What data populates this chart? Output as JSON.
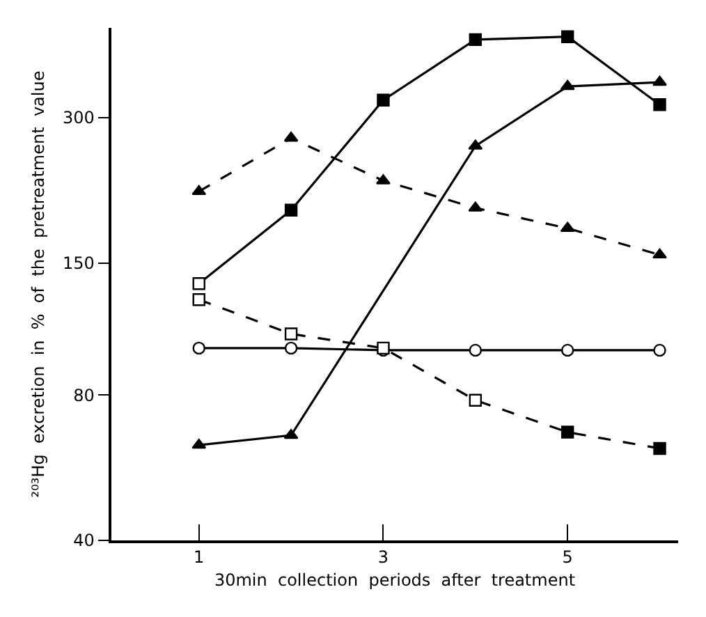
{
  "chart_data": {
    "type": "line",
    "xlabel": "30min  collection  periods  after  treatment",
    "ylabel": "²⁰³Hg  excretion  in  %  of  the  pretreatment  value",
    "x": [
      1,
      2,
      3,
      4,
      5,
      6
    ],
    "xlim": [
      0.05,
      6.2
    ],
    "xticks": [
      1,
      3,
      5
    ],
    "ylim": [
      40,
      460
    ],
    "yticks": [
      40,
      80,
      150,
      300
    ],
    "log": true,
    "grid": false,
    "series": [
      {
        "color": "#000000",
        "marker": "square",
        "line_style": "solid",
        "colors": [
          "#ffffff",
          "#000000",
          "#000000",
          "#000000",
          "#000000",
          "#000000"
        ],
        "values": [
          136,
          193,
          326,
          435,
          441,
          319
        ]
      },
      {
        "color": "#000000",
        "marker": "triangle",
        "line_style": "solid",
        "x": [
          1,
          2,
          4,
          5,
          6
        ],
        "values": [
          63,
          66,
          262,
          348,
          355
        ]
      },
      {
        "color": "#000000",
        "marker": "triangle",
        "line_style": "dashed",
        "values": [
          211,
          272,
          222,
          195,
          177,
          156
        ]
      },
      {
        "color": "#000000",
        "marker": "square",
        "line_style": "dashed",
        "colors": [
          "#ffffff",
          "#ffffff",
          "#ffffff",
          "#ffffff",
          "#000000",
          "#000000"
        ],
        "values": [
          126,
          107,
          100,
          78,
          67,
          62
        ]
      },
      {
        "color": "#000000",
        "marker": "circle",
        "line_style": "solid",
        "colors": [
          "#ffffff",
          "#ffffff",
          "#ffffff",
          "#ffffff",
          "#ffffff",
          "#ffffff"
        ],
        "values": [
          100,
          100,
          99,
          99,
          99,
          99
        ]
      }
    ]
  }
}
